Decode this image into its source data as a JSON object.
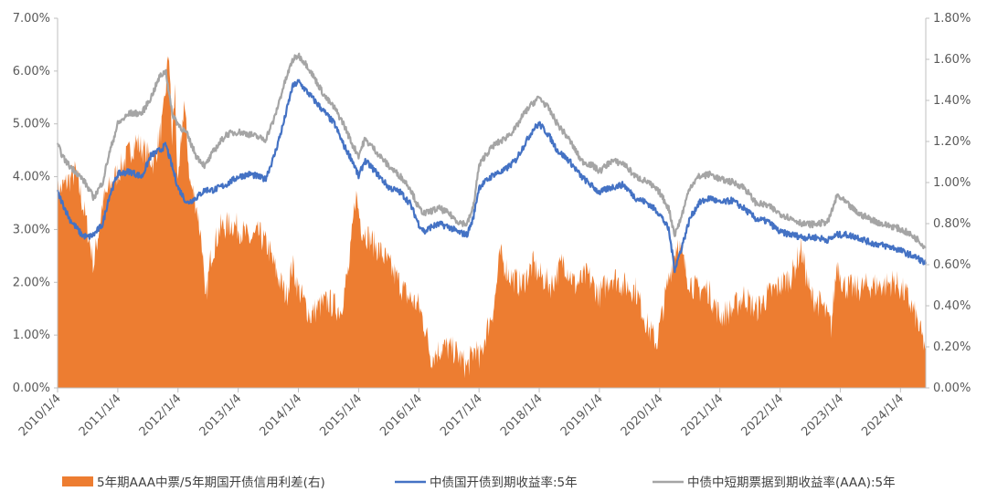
{
  "chart_data": {
    "type": "line",
    "left_axis": {
      "ticks": [
        "7.00%",
        "6.00%",
        "5.00%",
        "4.00%",
        "3.00%",
        "2.00%",
        "1.00%",
        "0.00%"
      ],
      "ylim": [
        0,
        7
      ]
    },
    "right_axis": {
      "ticks": [
        "1.80%",
        "1.60%",
        "1.40%",
        "1.20%",
        "1.00%",
        "0.80%",
        "0.60%",
        "0.40%",
        "0.20%",
        "0.00%"
      ],
      "ylim": [
        0,
        1.8
      ]
    },
    "x_ticks": [
      "2010/1/4",
      "2011/1/4",
      "2012/1/4",
      "2013/1/4",
      "2014/1/4",
      "2015/1/4",
      "2016/1/4",
      "2017/1/4",
      "2018/1/4",
      "2019/1/4",
      "2020/1/4",
      "2021/1/4",
      "2022/1/4",
      "2023/1/4",
      "2024/1/4"
    ],
    "xlim": [
      2010.0,
      2024.42
    ],
    "legend_position": "bottom",
    "series": [
      {
        "name": "5年期AAA中票/5年期国开债信用利差(右)",
        "kind": "area",
        "axis": "right",
        "color": "#ED7D31",
        "points": [
          [
            2010.0,
            0.95
          ],
          [
            2010.15,
            1.0
          ],
          [
            2010.3,
            1.05
          ],
          [
            2010.45,
            0.85
          ],
          [
            2010.6,
            0.6
          ],
          [
            2010.75,
            0.9
          ],
          [
            2010.9,
            1.0
          ],
          [
            2011.0,
            1.05
          ],
          [
            2011.1,
            1.1
          ],
          [
            2011.2,
            1.15
          ],
          [
            2011.3,
            1.2
          ],
          [
            2011.45,
            1.15
          ],
          [
            2011.6,
            1.1
          ],
          [
            2011.75,
            1.3
          ],
          [
            2011.85,
            1.65
          ],
          [
            2011.9,
            1.2
          ],
          [
            2011.95,
            1.45
          ],
          [
            2012.0,
            0.95
          ],
          [
            2012.1,
            1.4
          ],
          [
            2012.2,
            1.0
          ],
          [
            2012.3,
            0.9
          ],
          [
            2012.4,
            0.7
          ],
          [
            2012.45,
            0.4
          ],
          [
            2012.55,
            0.65
          ],
          [
            2012.7,
            0.78
          ],
          [
            2012.9,
            0.8
          ],
          [
            2013.0,
            0.78
          ],
          [
            2013.2,
            0.72
          ],
          [
            2013.35,
            0.75
          ],
          [
            2013.5,
            0.68
          ],
          [
            2013.65,
            0.55
          ],
          [
            2013.8,
            0.45
          ],
          [
            2013.9,
            0.6
          ],
          [
            2014.0,
            0.48
          ],
          [
            2014.2,
            0.35
          ],
          [
            2014.35,
            0.4
          ],
          [
            2014.5,
            0.42
          ],
          [
            2014.7,
            0.38
          ],
          [
            2014.85,
            0.6
          ],
          [
            2014.95,
            0.95
          ],
          [
            2015.05,
            0.78
          ],
          [
            2015.2,
            0.72
          ],
          [
            2015.4,
            0.65
          ],
          [
            2015.6,
            0.55
          ],
          [
            2015.8,
            0.45
          ],
          [
            2016.0,
            0.4
          ],
          [
            2016.1,
            0.3
          ],
          [
            2016.2,
            0.15
          ],
          [
            2016.4,
            0.2
          ],
          [
            2016.6,
            0.18
          ],
          [
            2016.8,
            0.1
          ],
          [
            2016.95,
            0.2
          ],
          [
            2017.0,
            0.12
          ],
          [
            2017.1,
            0.25
          ],
          [
            2017.25,
            0.4
          ],
          [
            2017.35,
            0.65
          ],
          [
            2017.5,
            0.55
          ],
          [
            2017.7,
            0.5
          ],
          [
            2017.9,
            0.6
          ],
          [
            2018.0,
            0.55
          ],
          [
            2018.2,
            0.5
          ],
          [
            2018.4,
            0.62
          ],
          [
            2018.6,
            0.5
          ],
          [
            2018.8,
            0.55
          ],
          [
            2019.0,
            0.45
          ],
          [
            2019.2,
            0.55
          ],
          [
            2019.4,
            0.5
          ],
          [
            2019.6,
            0.48
          ],
          [
            2019.8,
            0.3
          ],
          [
            2019.95,
            0.22
          ],
          [
            2020.1,
            0.45
          ],
          [
            2020.2,
            0.6
          ],
          [
            2020.3,
            0.72
          ],
          [
            2020.45,
            0.55
          ],
          [
            2020.6,
            0.48
          ],
          [
            2020.8,
            0.48
          ],
          [
            2021.0,
            0.35
          ],
          [
            2021.2,
            0.38
          ],
          [
            2021.4,
            0.45
          ],
          [
            2021.6,
            0.38
          ],
          [
            2021.8,
            0.45
          ],
          [
            2022.0,
            0.5
          ],
          [
            2022.2,
            0.55
          ],
          [
            2022.35,
            0.68
          ],
          [
            2022.5,
            0.45
          ],
          [
            2022.7,
            0.4
          ],
          [
            2022.85,
            0.3
          ],
          [
            2022.95,
            0.62
          ],
          [
            2023.05,
            0.5
          ],
          [
            2023.25,
            0.48
          ],
          [
            2023.5,
            0.5
          ],
          [
            2023.75,
            0.5
          ],
          [
            2023.9,
            0.52
          ],
          [
            2024.1,
            0.45
          ],
          [
            2024.25,
            0.35
          ],
          [
            2024.35,
            0.25
          ],
          [
            2024.42,
            0.2
          ]
        ]
      },
      {
        "name": "中债国开债到期收益率:5年",
        "kind": "line",
        "axis": "left",
        "color": "#4472C4",
        "points": [
          [
            2010.0,
            3.7
          ],
          [
            2010.1,
            3.45
          ],
          [
            2010.2,
            3.2
          ],
          [
            2010.3,
            3.05
          ],
          [
            2010.4,
            2.9
          ],
          [
            2010.5,
            2.85
          ],
          [
            2010.6,
            2.9
          ],
          [
            2010.75,
            3.1
          ],
          [
            2010.85,
            3.6
          ],
          [
            2011.0,
            4.05
          ],
          [
            2011.2,
            4.1
          ],
          [
            2011.4,
            4.0
          ],
          [
            2011.55,
            4.4
          ],
          [
            2011.7,
            4.5
          ],
          [
            2011.8,
            4.6
          ],
          [
            2011.9,
            4.2
          ],
          [
            2012.0,
            3.8
          ],
          [
            2012.15,
            3.5
          ],
          [
            2012.3,
            3.6
          ],
          [
            2012.45,
            3.75
          ],
          [
            2012.6,
            3.75
          ],
          [
            2012.8,
            3.85
          ],
          [
            2013.0,
            4.0
          ],
          [
            2013.2,
            4.05
          ],
          [
            2013.45,
            3.95
          ],
          [
            2013.6,
            4.4
          ],
          [
            2013.75,
            5.0
          ],
          [
            2013.9,
            5.7
          ],
          [
            2014.0,
            5.8
          ],
          [
            2014.15,
            5.6
          ],
          [
            2014.3,
            5.4
          ],
          [
            2014.45,
            5.2
          ],
          [
            2014.6,
            5.0
          ],
          [
            2014.75,
            4.6
          ],
          [
            2014.9,
            4.3
          ],
          [
            2015.0,
            4.0
          ],
          [
            2015.1,
            4.3
          ],
          [
            2015.2,
            4.2
          ],
          [
            2015.35,
            4.0
          ],
          [
            2015.5,
            3.8
          ],
          [
            2015.7,
            3.7
          ],
          [
            2015.85,
            3.5
          ],
          [
            2016.0,
            3.1
          ],
          [
            2016.1,
            2.95
          ],
          [
            2016.2,
            3.05
          ],
          [
            2016.35,
            3.1
          ],
          [
            2016.5,
            3.05
          ],
          [
            2016.65,
            2.95
          ],
          [
            2016.8,
            2.9
          ],
          [
            2016.9,
            3.2
          ],
          [
            2017.0,
            3.8
          ],
          [
            2017.1,
            3.9
          ],
          [
            2017.25,
            4.05
          ],
          [
            2017.4,
            4.1
          ],
          [
            2017.6,
            4.3
          ],
          [
            2017.75,
            4.6
          ],
          [
            2017.9,
            4.9
          ],
          [
            2018.0,
            5.0
          ],
          [
            2018.15,
            4.8
          ],
          [
            2018.3,
            4.5
          ],
          [
            2018.5,
            4.3
          ],
          [
            2018.7,
            4.0
          ],
          [
            2018.9,
            3.8
          ],
          [
            2019.0,
            3.7
          ],
          [
            2019.2,
            3.8
          ],
          [
            2019.4,
            3.85
          ],
          [
            2019.6,
            3.6
          ],
          [
            2019.8,
            3.5
          ],
          [
            2020.0,
            3.3
          ],
          [
            2020.15,
            3.0
          ],
          [
            2020.25,
            2.25
          ],
          [
            2020.35,
            2.6
          ],
          [
            2020.5,
            3.2
          ],
          [
            2020.65,
            3.5
          ],
          [
            2020.85,
            3.6
          ],
          [
            2021.0,
            3.5
          ],
          [
            2021.2,
            3.55
          ],
          [
            2021.4,
            3.4
          ],
          [
            2021.6,
            3.2
          ],
          [
            2021.8,
            3.15
          ],
          [
            2022.0,
            2.95
          ],
          [
            2022.2,
            2.9
          ],
          [
            2022.4,
            2.85
          ],
          [
            2022.6,
            2.85
          ],
          [
            2022.8,
            2.8
          ],
          [
            2022.95,
            2.9
          ],
          [
            2023.1,
            2.9
          ],
          [
            2023.3,
            2.85
          ],
          [
            2023.5,
            2.75
          ],
          [
            2023.7,
            2.7
          ],
          [
            2023.9,
            2.65
          ],
          [
            2024.1,
            2.55
          ],
          [
            2024.3,
            2.45
          ],
          [
            2024.42,
            2.35
          ]
        ]
      },
      {
        "name": "中债中短期票据到期收益率(AAA):5年",
        "kind": "line",
        "axis": "left",
        "color": "#A5A5A5",
        "points": [
          [
            2010.0,
            4.6
          ],
          [
            2010.1,
            4.35
          ],
          [
            2010.2,
            4.2
          ],
          [
            2010.3,
            4.1
          ],
          [
            2010.45,
            3.9
          ],
          [
            2010.6,
            3.6
          ],
          [
            2010.75,
            3.9
          ],
          [
            2010.85,
            4.4
          ],
          [
            2011.0,
            5.0
          ],
          [
            2011.2,
            5.2
          ],
          [
            2011.4,
            5.2
          ],
          [
            2011.55,
            5.5
          ],
          [
            2011.7,
            5.9
          ],
          [
            2011.8,
            6.0
          ],
          [
            2011.9,
            5.2
          ],
          [
            2012.0,
            5.0
          ],
          [
            2012.15,
            4.8
          ],
          [
            2012.3,
            4.4
          ],
          [
            2012.45,
            4.2
          ],
          [
            2012.6,
            4.5
          ],
          [
            2012.8,
            4.8
          ],
          [
            2013.0,
            4.85
          ],
          [
            2013.2,
            4.8
          ],
          [
            2013.45,
            4.7
          ],
          [
            2013.6,
            5.1
          ],
          [
            2013.75,
            5.7
          ],
          [
            2013.9,
            6.2
          ],
          [
            2014.0,
            6.3
          ],
          [
            2014.15,
            6.1
          ],
          [
            2014.3,
            5.8
          ],
          [
            2014.45,
            5.5
          ],
          [
            2014.6,
            5.3
          ],
          [
            2014.75,
            5.0
          ],
          [
            2014.9,
            4.6
          ],
          [
            2015.0,
            4.4
          ],
          [
            2015.1,
            4.7
          ],
          [
            2015.2,
            4.6
          ],
          [
            2015.35,
            4.4
          ],
          [
            2015.5,
            4.2
          ],
          [
            2015.7,
            4.0
          ],
          [
            2015.85,
            3.8
          ],
          [
            2016.0,
            3.4
          ],
          [
            2016.1,
            3.3
          ],
          [
            2016.2,
            3.35
          ],
          [
            2016.35,
            3.4
          ],
          [
            2016.5,
            3.3
          ],
          [
            2016.65,
            3.15
          ],
          [
            2016.8,
            3.1
          ],
          [
            2016.9,
            3.4
          ],
          [
            2017.0,
            4.2
          ],
          [
            2017.1,
            4.4
          ],
          [
            2017.25,
            4.6
          ],
          [
            2017.4,
            4.7
          ],
          [
            2017.6,
            4.9
          ],
          [
            2017.75,
            5.2
          ],
          [
            2017.9,
            5.4
          ],
          [
            2018.0,
            5.5
          ],
          [
            2018.15,
            5.3
          ],
          [
            2018.3,
            5.0
          ],
          [
            2018.5,
            4.7
          ],
          [
            2018.7,
            4.3
          ],
          [
            2018.9,
            4.2
          ],
          [
            2019.0,
            4.1
          ],
          [
            2019.2,
            4.3
          ],
          [
            2019.4,
            4.25
          ],
          [
            2019.6,
            4.0
          ],
          [
            2019.8,
            3.9
          ],
          [
            2020.0,
            3.7
          ],
          [
            2020.15,
            3.4
          ],
          [
            2020.25,
            2.9
          ],
          [
            2020.35,
            3.2
          ],
          [
            2020.5,
            3.8
          ],
          [
            2020.65,
            4.0
          ],
          [
            2020.85,
            4.05
          ],
          [
            2021.0,
            3.95
          ],
          [
            2021.2,
            3.9
          ],
          [
            2021.4,
            3.8
          ],
          [
            2021.6,
            3.5
          ],
          [
            2021.8,
            3.45
          ],
          [
            2022.0,
            3.3
          ],
          [
            2022.2,
            3.2
          ],
          [
            2022.4,
            3.1
          ],
          [
            2022.6,
            3.1
          ],
          [
            2022.8,
            3.15
          ],
          [
            2022.95,
            3.65
          ],
          [
            2023.1,
            3.5
          ],
          [
            2023.3,
            3.3
          ],
          [
            2023.5,
            3.2
          ],
          [
            2023.7,
            3.1
          ],
          [
            2023.9,
            3.05
          ],
          [
            2024.1,
            2.95
          ],
          [
            2024.3,
            2.8
          ],
          [
            2024.42,
            2.65
          ]
        ]
      }
    ]
  }
}
